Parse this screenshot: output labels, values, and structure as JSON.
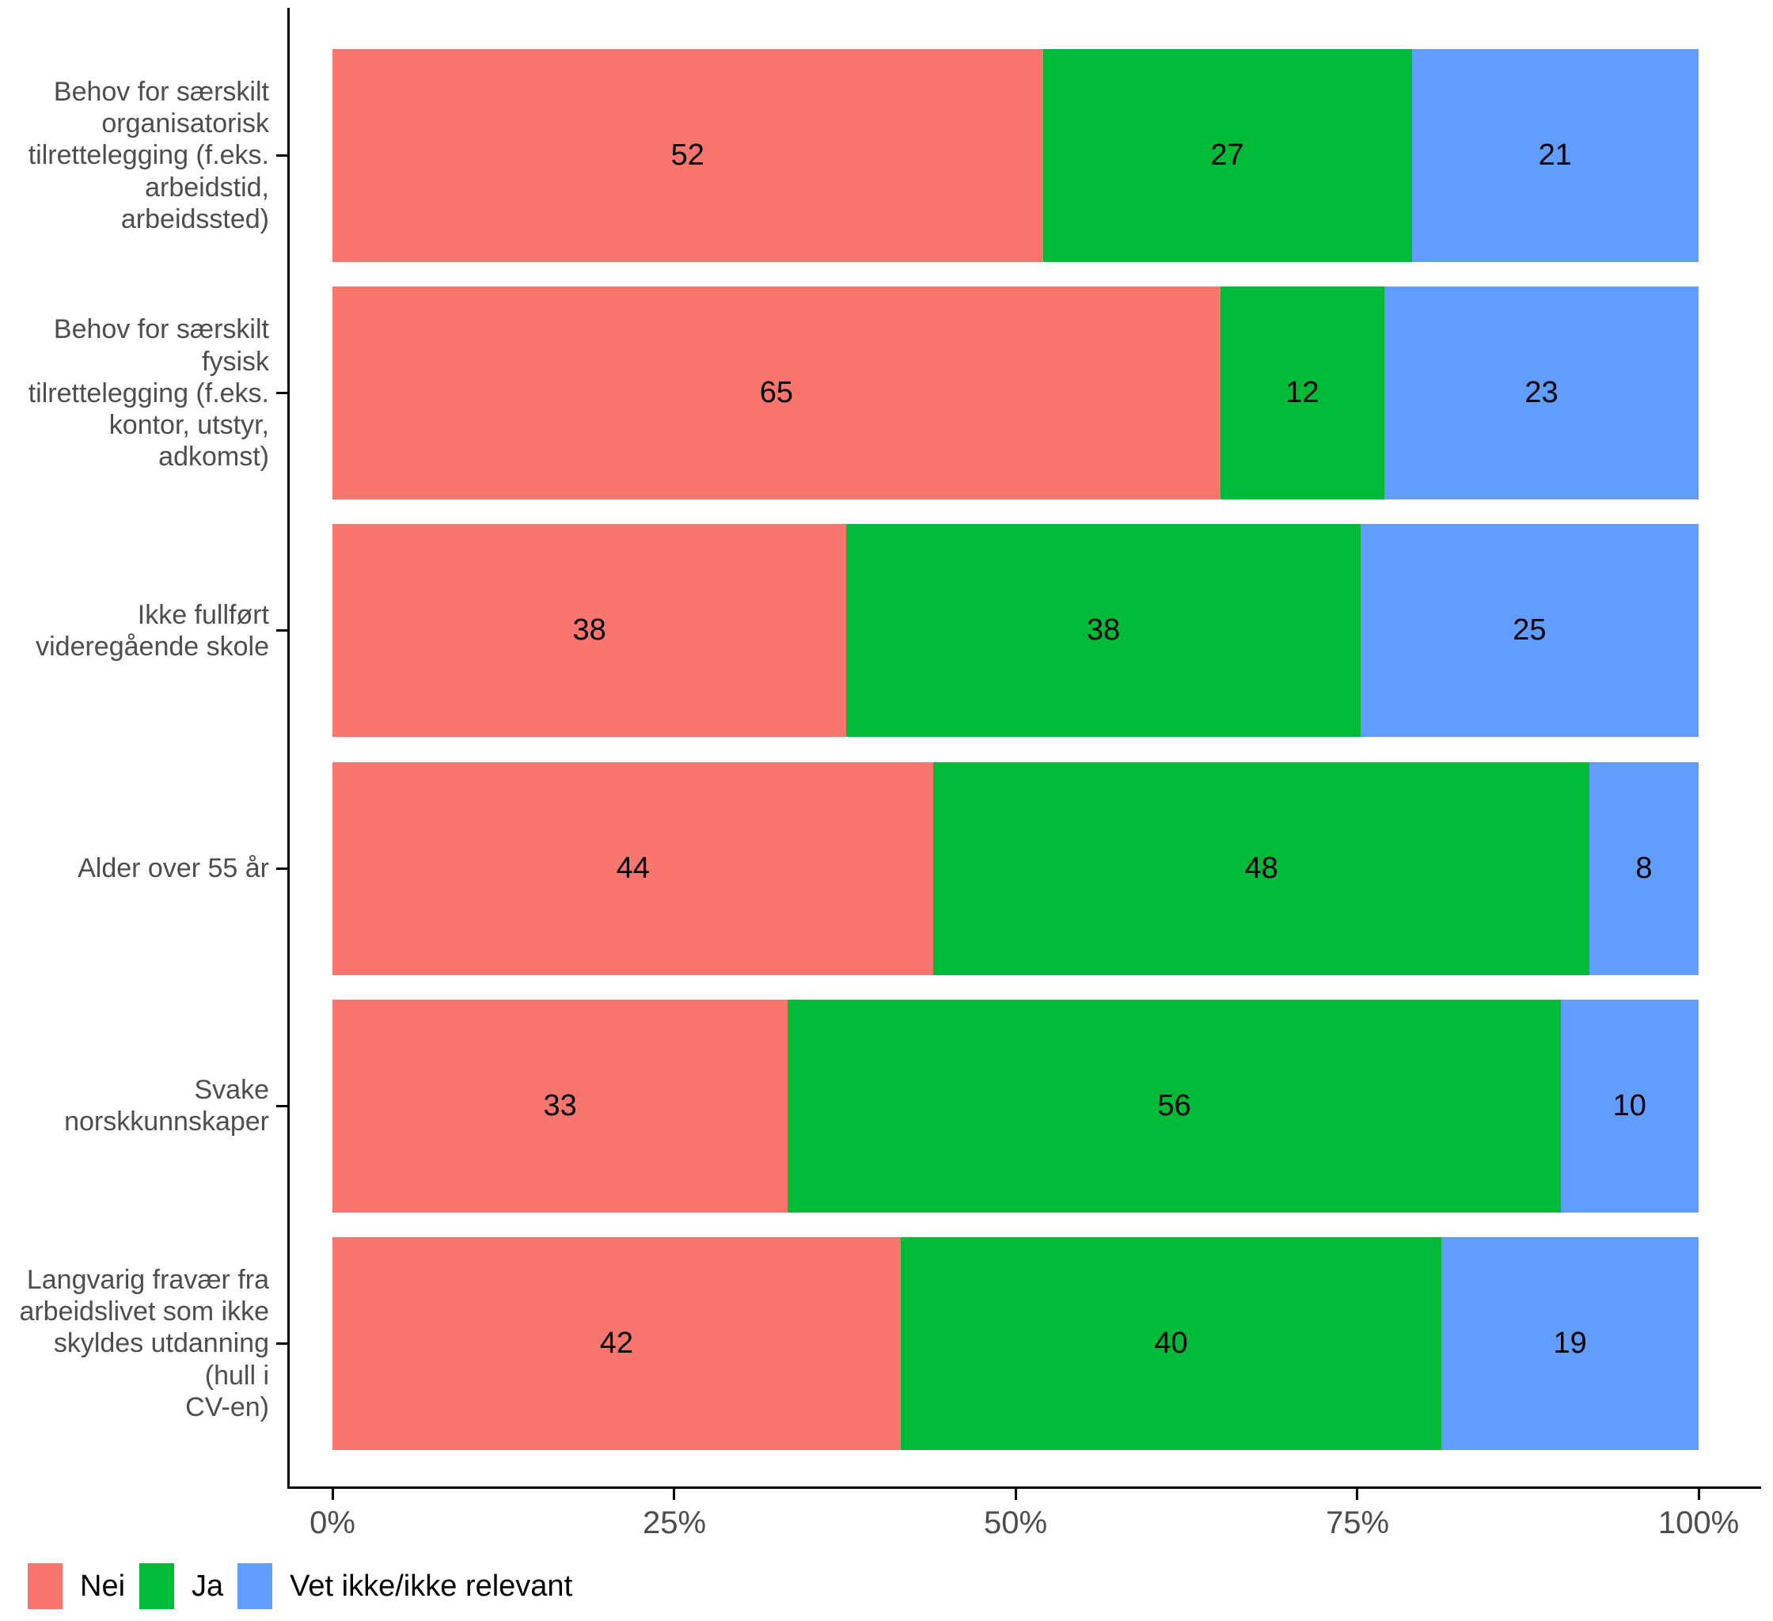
{
  "colors": {
    "nei": "#F8766D",
    "ja": "#00BA38",
    "vet_ikke": "#619CFF",
    "axis_text": "#4D4D4D",
    "value_text": "#000000",
    "spine": "#000000",
    "background": "#FFFFFF"
  },
  "chart_data": {
    "type": "bar",
    "orientation": "horizontal",
    "stacked": true,
    "unit": "percent",
    "title": "",
    "xlabel": "",
    "ylabel": "",
    "x_range": [
      0,
      100
    ],
    "x_ticks": [
      {
        "value": 0,
        "label": "0%"
      },
      {
        "value": 25,
        "label": "25%"
      },
      {
        "value": 50,
        "label": "50%"
      },
      {
        "value": 75,
        "label": "75%"
      },
      {
        "value": 100,
        "label": "100%"
      }
    ],
    "grid": false,
    "legend_position": "bottom-left",
    "categories": [
      "Behov for særskilt\norganisatorisk\ntilrettelegging (f.eks.\narbeidstid, arbeidssted)",
      "Behov for særskilt fysisk\ntilrettelegging (f.eks.\nkontor, utstyr, adkomst)",
      "Ikke fullført\nvideregående skole",
      "Alder over 55 år",
      "Svake norskkunnskaper",
      "Langvarig fravær fra\narbeidslivet som ikke\nskyldes utdanning (hull i\nCV-en)"
    ],
    "series": [
      {
        "name": "Nei",
        "key": "nei",
        "color": "#F8766D",
        "values": [
          52,
          65,
          38,
          44,
          33,
          42
        ]
      },
      {
        "name": "Ja",
        "key": "ja",
        "color": "#00BA38",
        "values": [
          27,
          12,
          38,
          48,
          56,
          40
        ]
      },
      {
        "name": "Vet ikke/ikke relevant",
        "key": "vet-ikke",
        "color": "#619CFF",
        "values": [
          21,
          23,
          25,
          8,
          10,
          19
        ]
      }
    ]
  }
}
